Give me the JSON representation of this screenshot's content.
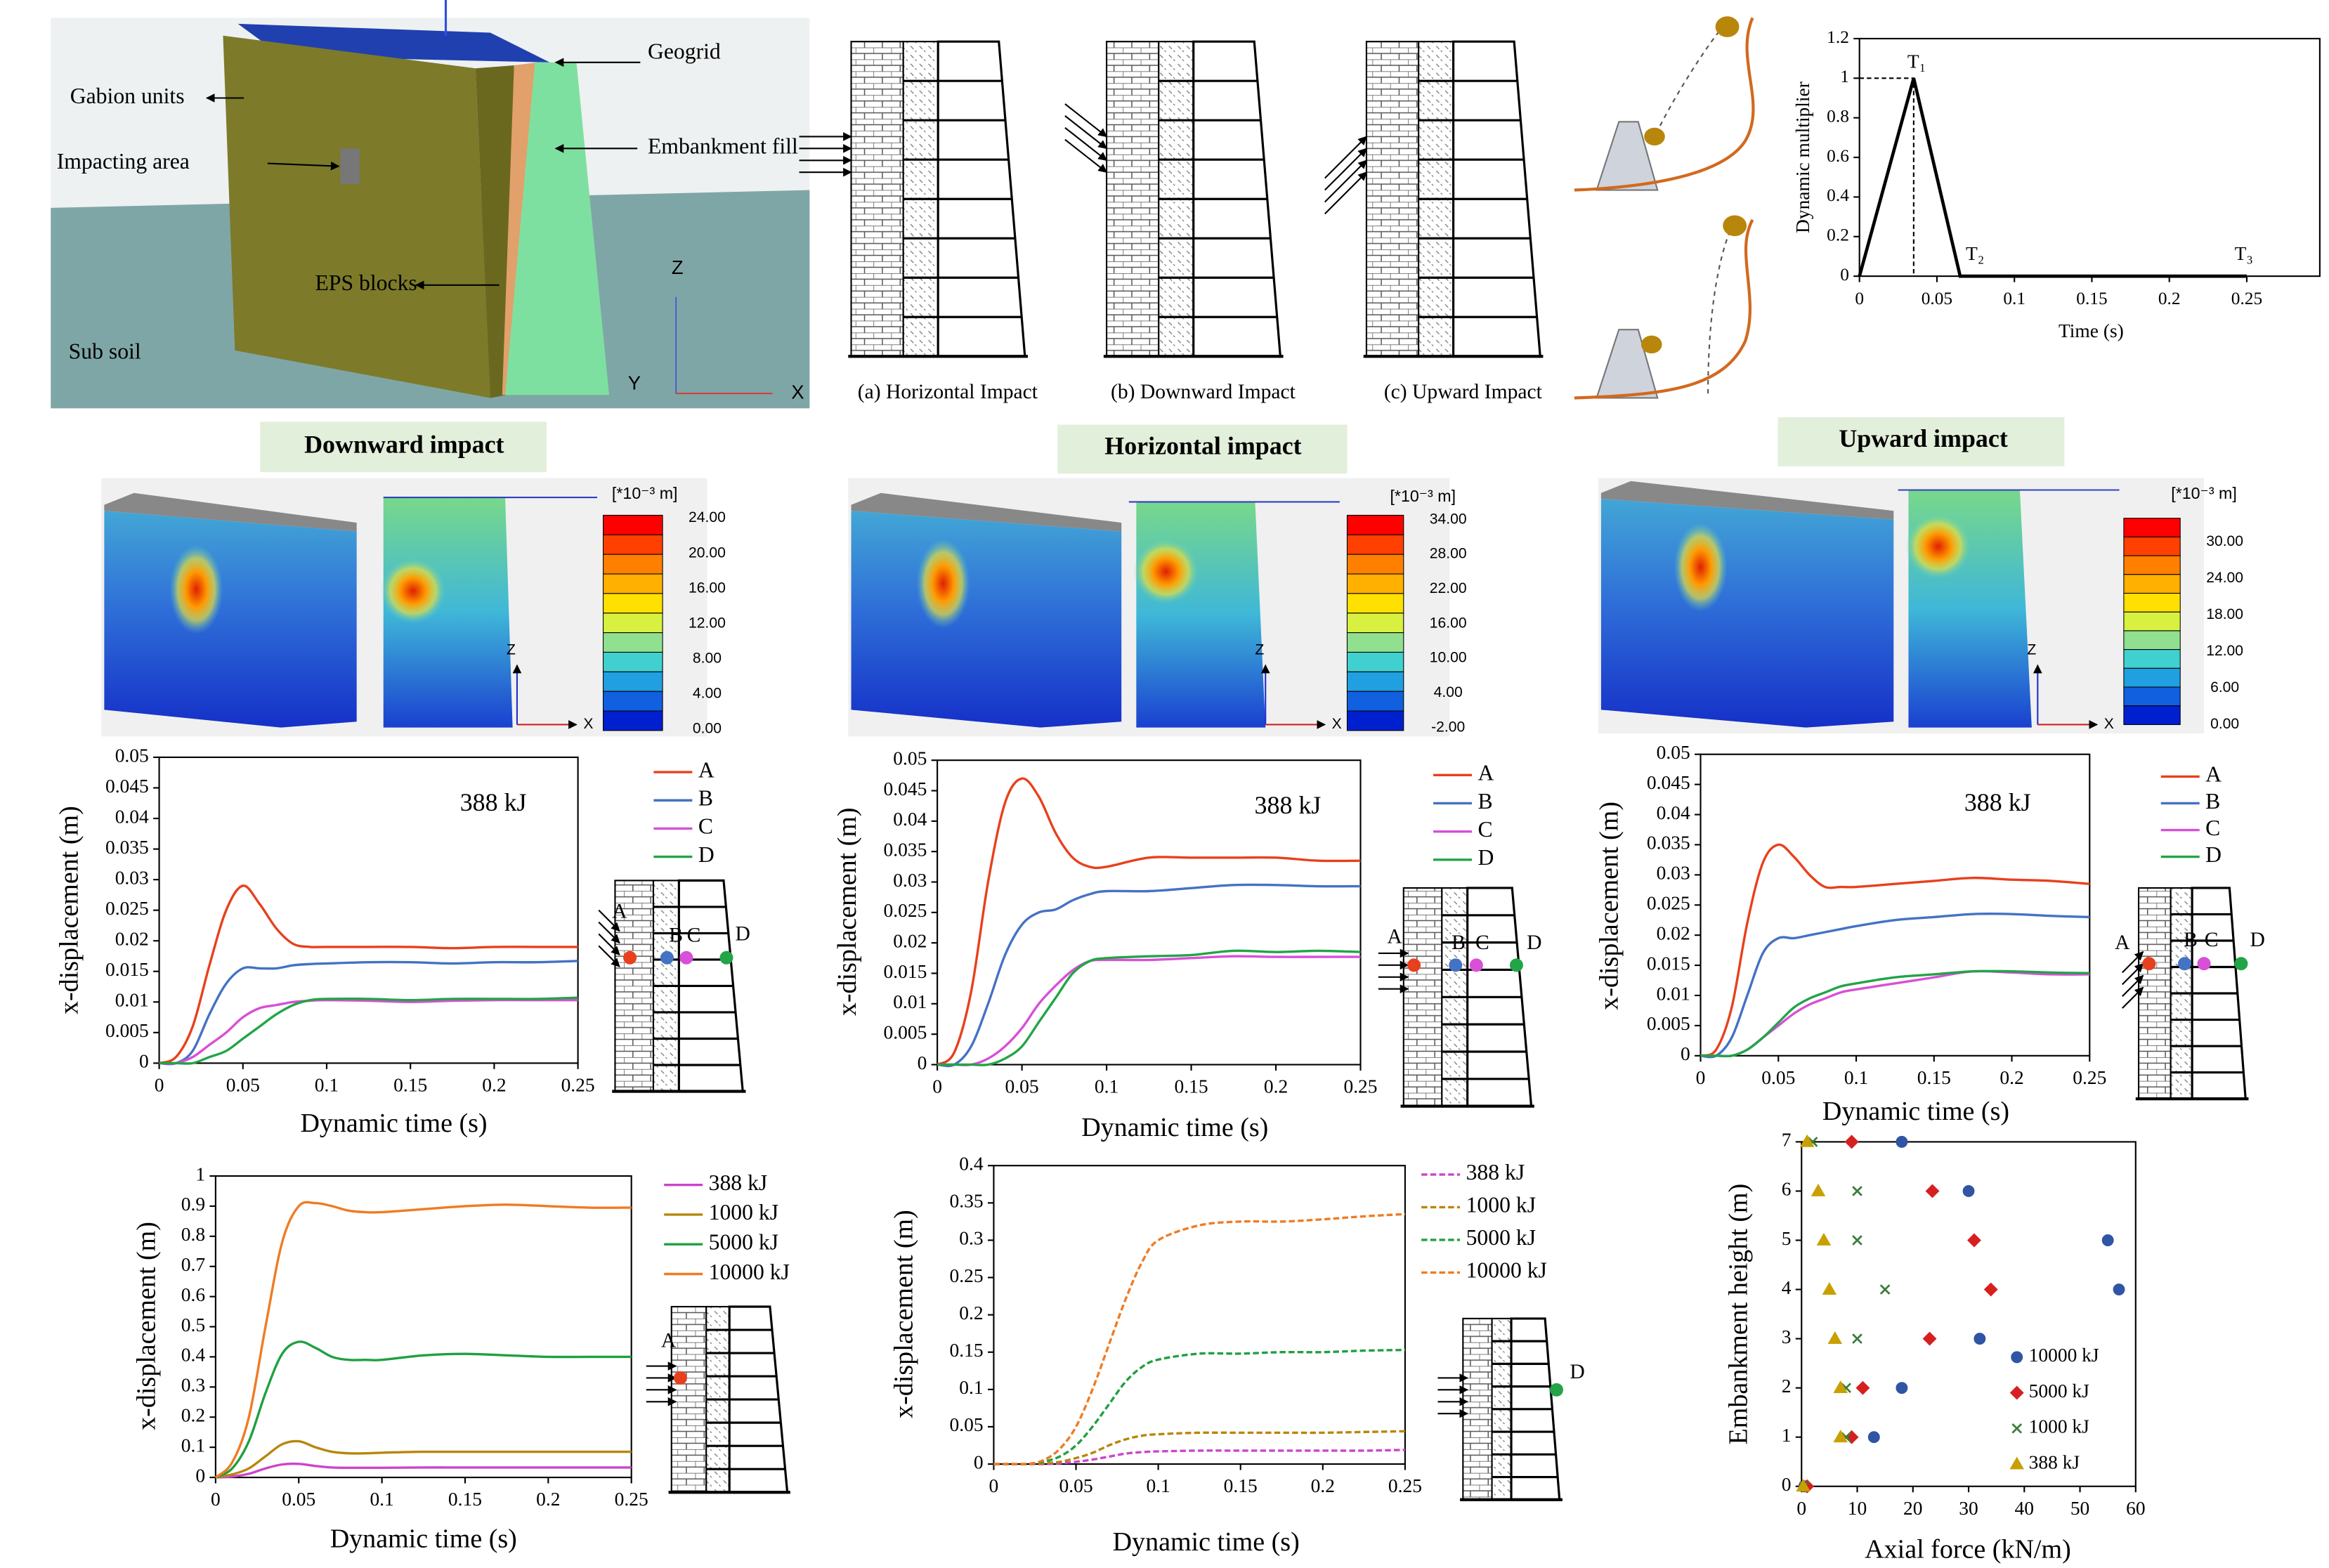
{
  "model": {
    "labels": [
      "Gabion units",
      "Impacting area",
      "EPS blocks",
      "Sub soil",
      "Geogrid",
      "Embankment fill"
    ],
    "axes": [
      "Z",
      "Y",
      "X"
    ]
  },
  "impact_diagrams": {
    "captions": [
      "(a) Horizontal Impact",
      "(b) Downward Impact",
      "(c) Upward Impact"
    ]
  },
  "sections": [
    "Downward impact",
    "Horizontal impact",
    "Upward impact"
  ],
  "contours": [
    {
      "unit": "[*10⁻³ m]",
      "axes": [
        "Z",
        "X"
      ],
      "ticks": [
        {
          "value": 24,
          "label": "24.00"
        },
        {
          "value": 20,
          "label": "20.00"
        },
        {
          "value": 16,
          "label": "16.00"
        },
        {
          "value": 12,
          "label": "12.00"
        },
        {
          "value": 8,
          "label": "8.00"
        },
        {
          "value": 4,
          "label": "4.00"
        },
        {
          "value": 0,
          "label": "0.00"
        }
      ]
    },
    {
      "unit": "[*10⁻³ m]",
      "axes": [
        "Z",
        "X"
      ],
      "ticks": [
        {
          "value": 34,
          "label": "34.00"
        },
        {
          "value": 28,
          "label": "28.00"
        },
        {
          "value": 22,
          "label": "22.00"
        },
        {
          "value": 16,
          "label": "16.00"
        },
        {
          "value": 10,
          "label": "10.00"
        },
        {
          "value": 4,
          "label": "4.00"
        },
        {
          "value": -2,
          "label": "-2.00"
        }
      ]
    },
    {
      "unit": "[*10⁻³ m]",
      "axes": [
        "Z",
        "X"
      ],
      "ticks": [
        {
          "value": 30,
          "label": "30.00"
        },
        {
          "value": 24,
          "label": "24.00"
        },
        {
          "value": 18,
          "label": "18.00"
        },
        {
          "value": 12,
          "label": "12.00"
        },
        {
          "value": 6,
          "label": "6.00"
        },
        {
          "value": 0,
          "label": "0.00"
        }
      ]
    }
  ],
  "chart_data": [
    {
      "type": "line",
      "x_label": "Time (s)",
      "y_label": "Dynamic multiplier",
      "annotations": [
        "T₁",
        "T₂",
        "T₃"
      ],
      "x": [
        0,
        0.035,
        0.065,
        0.25
      ],
      "series": [
        {
          "name": null,
          "color": "#000000",
          "values": [
            0,
            1,
            0,
            0
          ]
        }
      ],
      "xlim": [
        0,
        0.3
      ],
      "xticks": [
        0,
        0.05,
        0.1,
        0.15,
        0.2,
        0.25
      ],
      "ylim": [
        0,
        1.2
      ],
      "yticks": [
        0,
        0.2,
        0.4,
        0.6,
        0.8,
        1,
        1.2
      ]
    },
    {
      "type": "line",
      "x_label": "Dynamic time (s)",
      "y_label": "x-displacement (m)",
      "annotations": [
        "388 kJ"
      ],
      "inset_labels": [
        "A",
        "B",
        "C",
        "D"
      ],
      "x": [
        0,
        0.01,
        0.02,
        0.03,
        0.04,
        0.05,
        0.06,
        0.07,
        0.08,
        0.09,
        0.1,
        0.125,
        0.15,
        0.175,
        0.2,
        0.225,
        0.25
      ],
      "series": [
        {
          "name": "A",
          "color": "#e8401c",
          "values": [
            0,
            0.001,
            0.006,
            0.016,
            0.025,
            0.029,
            0.026,
            0.022,
            0.0195,
            0.019,
            0.019,
            0.019,
            0.019,
            0.0188,
            0.019,
            0.019,
            0.019
          ]
        },
        {
          "name": "B",
          "color": "#4472c4",
          "values": [
            0,
            0,
            0.002,
            0.008,
            0.013,
            0.0155,
            0.0155,
            0.0155,
            0.016,
            0.0162,
            0.0163,
            0.0165,
            0.0165,
            0.0163,
            0.0165,
            0.0165,
            0.0167
          ]
        },
        {
          "name": "C",
          "color": "#d84fd8",
          "values": [
            0,
            0,
            0.001,
            0.003,
            0.005,
            0.0075,
            0.009,
            0.0095,
            0.01,
            0.0102,
            0.0103,
            0.0102,
            0.01,
            0.0102,
            0.0103,
            0.0103,
            0.0103
          ]
        },
        {
          "name": "D",
          "color": "#22a447",
          "values": [
            0,
            0,
            0,
            0.001,
            0.002,
            0.004,
            0.006,
            0.008,
            0.0095,
            0.0103,
            0.0105,
            0.0105,
            0.0103,
            0.0105,
            0.0105,
            0.0105,
            0.0107
          ]
        }
      ],
      "xlim": [
        0,
        0.25
      ],
      "xticks": [
        0,
        0.05,
        0.1,
        0.15,
        0.2,
        0.25
      ],
      "ylim": [
        0,
        0.05
      ],
      "yticks": [
        0,
        0.005,
        0.01,
        0.015,
        0.02,
        0.025,
        0.03,
        0.035,
        0.04,
        0.045,
        0.05
      ]
    },
    {
      "type": "line",
      "x_label": "Dynamic time (s)",
      "y_label": "x-displacement (m)",
      "annotations": [
        "388 kJ"
      ],
      "inset_labels": [
        "A",
        "B",
        "C",
        "D"
      ],
      "x": [
        0,
        0.01,
        0.02,
        0.03,
        0.04,
        0.05,
        0.06,
        0.07,
        0.08,
        0.09,
        0.1,
        0.125,
        0.15,
        0.175,
        0.2,
        0.225,
        0.25
      ],
      "series": [
        {
          "name": "A",
          "color": "#e8401c",
          "values": [
            0,
            0.002,
            0.012,
            0.03,
            0.043,
            0.047,
            0.044,
            0.038,
            0.034,
            0.0325,
            0.0325,
            0.034,
            0.034,
            0.034,
            0.034,
            0.0335,
            0.0335
          ]
        },
        {
          "name": "B",
          "color": "#4472c4",
          "values": [
            0,
            0,
            0.003,
            0.01,
            0.018,
            0.023,
            0.025,
            0.0255,
            0.027,
            0.028,
            0.0285,
            0.0285,
            0.029,
            0.0295,
            0.0295,
            0.0293,
            0.0293
          ]
        },
        {
          "name": "C",
          "color": "#d84fd8",
          "values": [
            0,
            0,
            0,
            0.001,
            0.003,
            0.006,
            0.01,
            0.013,
            0.0155,
            0.017,
            0.0172,
            0.0172,
            0.0175,
            0.0178,
            0.0177,
            0.0177,
            0.0177
          ]
        },
        {
          "name": "D",
          "color": "#22a447",
          "values": [
            0,
            0,
            0,
            0,
            0.001,
            0.003,
            0.007,
            0.011,
            0.015,
            0.017,
            0.0175,
            0.0178,
            0.018,
            0.0187,
            0.0185,
            0.0187,
            0.0185
          ]
        }
      ],
      "xlim": [
        0,
        0.25
      ],
      "xticks": [
        0,
        0.05,
        0.1,
        0.15,
        0.2,
        0.25
      ],
      "ylim": [
        0,
        0.05
      ],
      "yticks": [
        0,
        0.005,
        0.01,
        0.015,
        0.02,
        0.025,
        0.03,
        0.035,
        0.04,
        0.045,
        0.05
      ]
    },
    {
      "type": "line",
      "x_label": "Dynamic time (s)",
      "y_label": "x-displacement (m)",
      "annotations": [
        "388 kJ"
      ],
      "inset_labels": [
        "A",
        "B",
        "C",
        "D"
      ],
      "x": [
        0,
        0.01,
        0.02,
        0.03,
        0.04,
        0.05,
        0.06,
        0.07,
        0.08,
        0.09,
        0.1,
        0.125,
        0.15,
        0.175,
        0.2,
        0.225,
        0.25
      ],
      "series": [
        {
          "name": "A",
          "color": "#e8401c",
          "values": [
            0,
            0.001,
            0.008,
            0.022,
            0.032,
            0.035,
            0.033,
            0.03,
            0.028,
            0.028,
            0.028,
            0.0285,
            0.029,
            0.0295,
            0.0292,
            0.029,
            0.0285
          ]
        },
        {
          "name": "B",
          "color": "#4472c4",
          "values": [
            0,
            0,
            0.003,
            0.01,
            0.017,
            0.0195,
            0.0195,
            0.02,
            0.0205,
            0.021,
            0.0215,
            0.0225,
            0.023,
            0.0235,
            0.0235,
            0.0232,
            0.023
          ]
        },
        {
          "name": "C",
          "color": "#d84fd8",
          "values": [
            0,
            0,
            0,
            0.001,
            0.003,
            0.005,
            0.007,
            0.0085,
            0.0095,
            0.0105,
            0.011,
            0.012,
            0.013,
            0.014,
            0.0138,
            0.0135,
            0.0135
          ]
        },
        {
          "name": "D",
          "color": "#22a447",
          "values": [
            0,
            0,
            0,
            0.001,
            0.003,
            0.0055,
            0.008,
            0.0095,
            0.0105,
            0.0115,
            0.012,
            0.013,
            0.0135,
            0.014,
            0.014,
            0.0138,
            0.0137
          ]
        }
      ],
      "xlim": [
        0,
        0.25
      ],
      "xticks": [
        0,
        0.05,
        0.1,
        0.15,
        0.2,
        0.25
      ],
      "ylim": [
        0,
        0.05
      ],
      "yticks": [
        0,
        0.005,
        0.01,
        0.015,
        0.02,
        0.025,
        0.03,
        0.035,
        0.04,
        0.045,
        0.05
      ]
    },
    {
      "type": "line",
      "x_label": "Dynamic time (s)",
      "y_label": "x-displacement (m)",
      "inset_labels": [
        "A"
      ],
      "x": [
        0,
        0.01,
        0.02,
        0.03,
        0.04,
        0.05,
        0.06,
        0.07,
        0.08,
        0.09,
        0.1,
        0.125,
        0.15,
        0.175,
        0.2,
        0.225,
        0.25
      ],
      "series": [
        {
          "name": "388 kJ",
          "color": "#cc44cc",
          "values": [
            0,
            0.003,
            0.012,
            0.03,
            0.043,
            0.045,
            0.038,
            0.033,
            0.032,
            0.032,
            0.032,
            0.033,
            0.033,
            0.033,
            0.033,
            0.033,
            0.033
          ]
        },
        {
          "name": "1000 kJ",
          "color": "#b8860b",
          "values": [
            0,
            0.01,
            0.03,
            0.07,
            0.11,
            0.12,
            0.1,
            0.085,
            0.08,
            0.08,
            0.082,
            0.085,
            0.085,
            0.085,
            0.085,
            0.085,
            0.085
          ]
        },
        {
          "name": "5000 kJ",
          "color": "#1fa040",
          "values": [
            0,
            0.03,
            0.12,
            0.28,
            0.41,
            0.45,
            0.43,
            0.4,
            0.39,
            0.39,
            0.39,
            0.405,
            0.41,
            0.405,
            0.4,
            0.4,
            0.4
          ]
        },
        {
          "name": "10000 kJ",
          "color": "#f07b22",
          "values": [
            0,
            0.05,
            0.2,
            0.5,
            0.78,
            0.9,
            0.91,
            0.9,
            0.885,
            0.88,
            0.88,
            0.89,
            0.9,
            0.905,
            0.9,
            0.895,
            0.895
          ]
        }
      ],
      "xlim": [
        0,
        0.25
      ],
      "xticks": [
        0,
        0.05,
        0.1,
        0.15,
        0.2,
        0.25
      ],
      "ylim": [
        0,
        1
      ],
      "yticks": [
        0,
        0.1,
        0.2,
        0.3,
        0.4,
        0.5,
        0.6,
        0.7,
        0.8,
        0.9,
        1
      ]
    },
    {
      "type": "line",
      "line_style": "dashed",
      "x_label": "Dynamic time (s)",
      "y_label": "x-displacement (m)",
      "inset_labels": [
        "D"
      ],
      "x": [
        0,
        0.01,
        0.02,
        0.03,
        0.04,
        0.05,
        0.06,
        0.07,
        0.08,
        0.09,
        0.1,
        0.125,
        0.15,
        0.175,
        0.2,
        0.225,
        0.25
      ],
      "series": [
        {
          "name": "388 kJ",
          "color": "#cc44cc",
          "values": [
            0,
            0,
            0,
            0,
            0.001,
            0.003,
            0.006,
            0.01,
            0.014,
            0.016,
            0.017,
            0.018,
            0.018,
            0.018,
            0.018,
            0.018,
            0.019
          ]
        },
        {
          "name": "1000 kJ",
          "color": "#b8860b",
          "values": [
            0,
            0,
            0,
            0.001,
            0.003,
            0.008,
            0.015,
            0.025,
            0.033,
            0.038,
            0.04,
            0.042,
            0.042,
            0.042,
            0.042,
            0.043,
            0.044
          ]
        },
        {
          "name": "5000 kJ",
          "color": "#1fa040",
          "values": [
            0,
            0,
            0,
            0.003,
            0.01,
            0.025,
            0.05,
            0.08,
            0.11,
            0.13,
            0.14,
            0.148,
            0.148,
            0.15,
            0.15,
            0.152,
            0.153
          ]
        },
        {
          "name": "10000 kJ",
          "color": "#f07b22",
          "values": [
            0,
            0,
            0,
            0.005,
            0.02,
            0.05,
            0.1,
            0.16,
            0.22,
            0.27,
            0.3,
            0.32,
            0.325,
            0.325,
            0.328,
            0.332,
            0.335
          ]
        }
      ],
      "xlim": [
        0,
        0.25
      ],
      "xticks": [
        0,
        0.05,
        0.1,
        0.15,
        0.2,
        0.25
      ],
      "ylim": [
        0,
        0.4
      ],
      "yticks": [
        0,
        0.05,
        0.1,
        0.15,
        0.2,
        0.25,
        0.3,
        0.35,
        0.4
      ]
    },
    {
      "type": "scatter",
      "x_label": "Axial force (kN/m)",
      "y_label": "Embankment height (m)",
      "series": [
        {
          "name": "10000 kJ",
          "color": "#2f55a4",
          "marker": "circle",
          "x": [
            0.5,
            13,
            18,
            32,
            57,
            55,
            30,
            18
          ],
          "values": [
            0,
            1,
            2,
            3,
            4,
            5,
            6,
            7
          ]
        },
        {
          "name": "5000 kJ",
          "color": "#d62020",
          "marker": "diamond",
          "x": [
            1,
            9,
            11,
            23,
            34,
            31,
            23.5,
            9
          ],
          "values": [
            0,
            1,
            2,
            3,
            4,
            5,
            6,
            7
          ]
        },
        {
          "name": "1000 kJ",
          "color": "#3a7d3a",
          "marker": "x",
          "x": [
            0.5,
            8,
            8,
            10,
            15,
            10,
            10,
            2
          ],
          "values": [
            0,
            1,
            2,
            3,
            4,
            5,
            6,
            7
          ]
        },
        {
          "name": "388 kJ",
          "color": "#c8a000",
          "marker": "triangle",
          "x": [
            0.3,
            7,
            7,
            6,
            5,
            4,
            3,
            1
          ],
          "values": [
            0,
            1,
            2,
            3,
            4,
            5,
            6,
            7
          ]
        }
      ],
      "xlim": [
        0,
        60
      ],
      "xticks": [
        0,
        10,
        20,
        30,
        40,
        50,
        60
      ],
      "ylim": [
        0,
        7
      ],
      "yticks": [
        0,
        1,
        2,
        3,
        4,
        5,
        6,
        7
      ]
    }
  ]
}
